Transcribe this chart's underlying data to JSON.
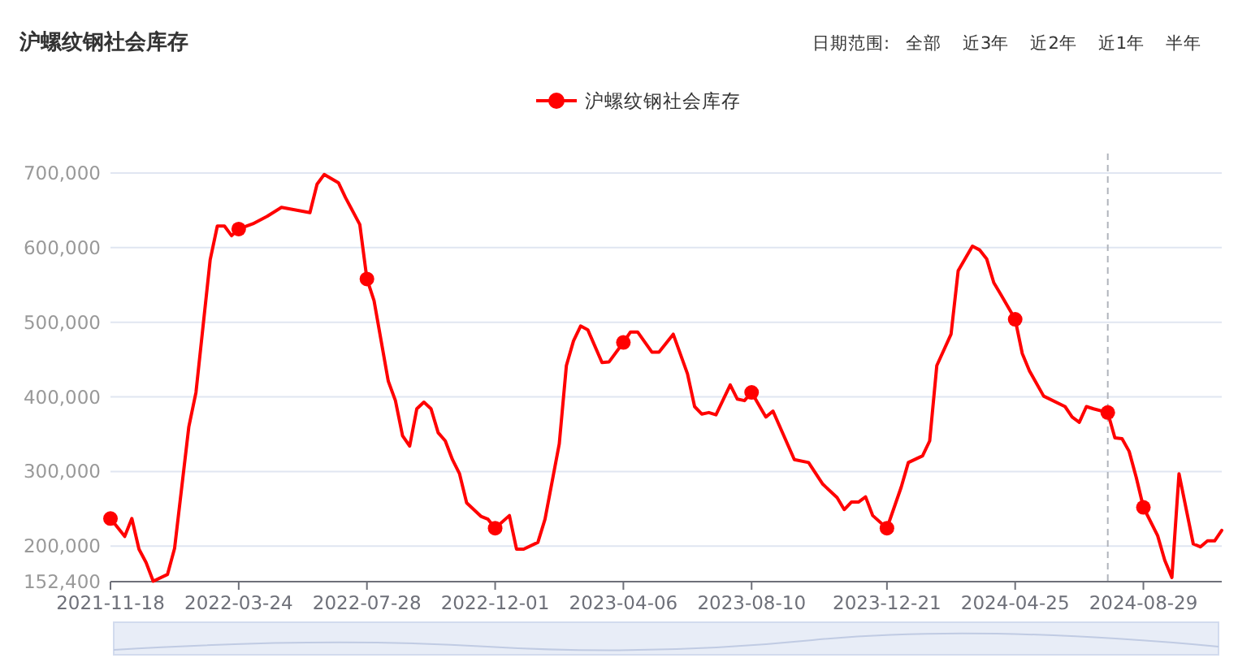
{
  "chart_data": {
    "type": "line",
    "title": "沪螺纹钢社会库存",
    "annotations": [
      "日期范围:",
      "全部",
      "近3年",
      "近2年",
      "近1年",
      "半年"
    ],
    "legend": "top",
    "grid": "y",
    "xlim": [
      "2021-11-18",
      "2024-11-14"
    ],
    "xticks": [
      "2021-11-18",
      "2022-03-24",
      "2022-07-28",
      "2022-12-01",
      "2023-04-06",
      "2023-08-10",
      "2023-12-21",
      "2024-04-25",
      "2024-08-29"
    ],
    "ylim": [
      152400,
      700000
    ],
    "yticks": [
      {
        "value": 152400,
        "label": "152,400"
      },
      {
        "value": 200000,
        "label": "200,000"
      },
      {
        "value": 300000,
        "label": "300,000"
      },
      {
        "value": 400000,
        "label": "400,000"
      },
      {
        "value": 500000,
        "label": "500,000"
      },
      {
        "value": 600000,
        "label": "600,000"
      },
      {
        "value": 700000,
        "label": "700,000"
      }
    ],
    "ref_lines": [
      {
        "axis": "x",
        "value": "2024-07-25",
        "color": "#b0b4bc",
        "line_style": "dashed"
      }
    ],
    "series": [
      {
        "name": "沪螺纹钢社会库存",
        "color": "#ff0000",
        "x": [
          "2021-11-18",
          "2021-12-02",
          "2021-12-09",
          "2021-12-16",
          "2021-12-23",
          "2021-12-30",
          "2022-01-13",
          "2022-01-20",
          "2022-02-03",
          "2022-02-10",
          "2022-02-24",
          "2022-03-03",
          "2022-03-10",
          "2022-03-17",
          "2022-03-24",
          "2022-04-07",
          "2022-04-21",
          "2022-05-05",
          "2022-06-02",
          "2022-06-09",
          "2022-06-16",
          "2022-06-30",
          "2022-07-07",
          "2022-07-21",
          "2022-07-28",
          "2022-08-04",
          "2022-08-18",
          "2022-08-25",
          "2022-09-01",
          "2022-09-08",
          "2022-09-15",
          "2022-09-22",
          "2022-09-29",
          "2022-10-06",
          "2022-10-13",
          "2022-10-20",
          "2022-10-27",
          "2022-11-03",
          "2022-11-17",
          "2022-11-24",
          "2022-12-01",
          "2022-12-15",
          "2022-12-22",
          "2022-12-29",
          "2023-01-12",
          "2023-01-19",
          "2023-02-02",
          "2023-02-09",
          "2023-02-16",
          "2023-02-23",
          "2023-03-02",
          "2023-03-16",
          "2023-03-23",
          "2023-04-06",
          "2023-04-13",
          "2023-04-20",
          "2023-05-04",
          "2023-05-11",
          "2023-05-25",
          "2023-06-08",
          "2023-06-15",
          "2023-06-22",
          "2023-06-29",
          "2023-07-06",
          "2023-07-20",
          "2023-07-27",
          "2023-08-03",
          "2023-08-10",
          "2023-08-24",
          "2023-08-31",
          "2023-09-21",
          "2023-10-05",
          "2023-10-19",
          "2023-11-02",
          "2023-11-09",
          "2023-11-16",
          "2023-11-23",
          "2023-11-30",
          "2023-12-07",
          "2023-12-21",
          "2024-01-04",
          "2024-01-11",
          "2024-01-25",
          "2024-02-01",
          "2024-02-08",
          "2024-02-22",
          "2024-02-29",
          "2024-03-14",
          "2024-03-21",
          "2024-03-28",
          "2024-04-04",
          "2024-04-11",
          "2024-04-25",
          "2024-05-02",
          "2024-05-09",
          "2024-05-23",
          "2024-06-13",
          "2024-06-20",
          "2024-06-27",
          "2024-07-04",
          "2024-07-11",
          "2024-07-25",
          "2024-08-01",
          "2024-08-08",
          "2024-08-15",
          "2024-08-22",
          "2024-08-29",
          "2024-09-12",
          "2024-09-19",
          "2024-09-26",
          "2024-10-03",
          "2024-10-17",
          "2024-10-24",
          "2024-10-31",
          "2024-11-07",
          "2024-11-14"
        ],
        "values": [
          237000,
          213000,
          237000,
          196000,
          178000,
          153000,
          162000,
          197000,
          360000,
          406000,
          584000,
          629000,
          629000,
          616000,
          625000,
          632000,
          642000,
          654000,
          647000,
          685000,
          698000,
          687000,
          667000,
          631000,
          558000,
          529000,
          421000,
          395000,
          348000,
          334000,
          384000,
          393000,
          384000,
          352000,
          341000,
          316000,
          297000,
          258000,
          240000,
          236000,
          224000,
          241000,
          196000,
          196000,
          205000,
          236000,
          337000,
          442000,
          475000,
          495000,
          490000,
          446000,
          447000,
          473000,
          487000,
          487000,
          460000,
          460000,
          484000,
          431000,
          387000,
          377000,
          379000,
          376000,
          416000,
          397000,
          395000,
          406000,
          373000,
          381000,
          316000,
          312000,
          283000,
          265000,
          249000,
          259000,
          259000,
          266000,
          241000,
          224000,
          279000,
          312000,
          321000,
          341000,
          442000,
          484000,
          569000,
          602000,
          597000,
          585000,
          553000,
          537000,
          504000,
          458000,
          435000,
          401000,
          387000,
          373000,
          366000,
          387000,
          384000,
          379000,
          345000,
          344000,
          327000,
          292000,
          252000,
          214000,
          181000,
          158000,
          297000,
          203000,
          199000,
          207000,
          207000,
          221000
        ]
      },
      {
        "type": "scatter",
        "color": "#ff0000",
        "marker": "circle",
        "x": [
          "2021-11-18",
          "2022-03-24",
          "2022-07-28",
          "2022-12-01",
          "2023-04-06",
          "2023-08-10",
          "2023-12-21",
          "2024-04-25",
          "2024-07-25",
          "2024-08-29"
        ],
        "values": [
          237000,
          625000,
          558000,
          224000,
          473000,
          406000,
          224000,
          504000,
          379000,
          252000
        ]
      }
    ]
  }
}
